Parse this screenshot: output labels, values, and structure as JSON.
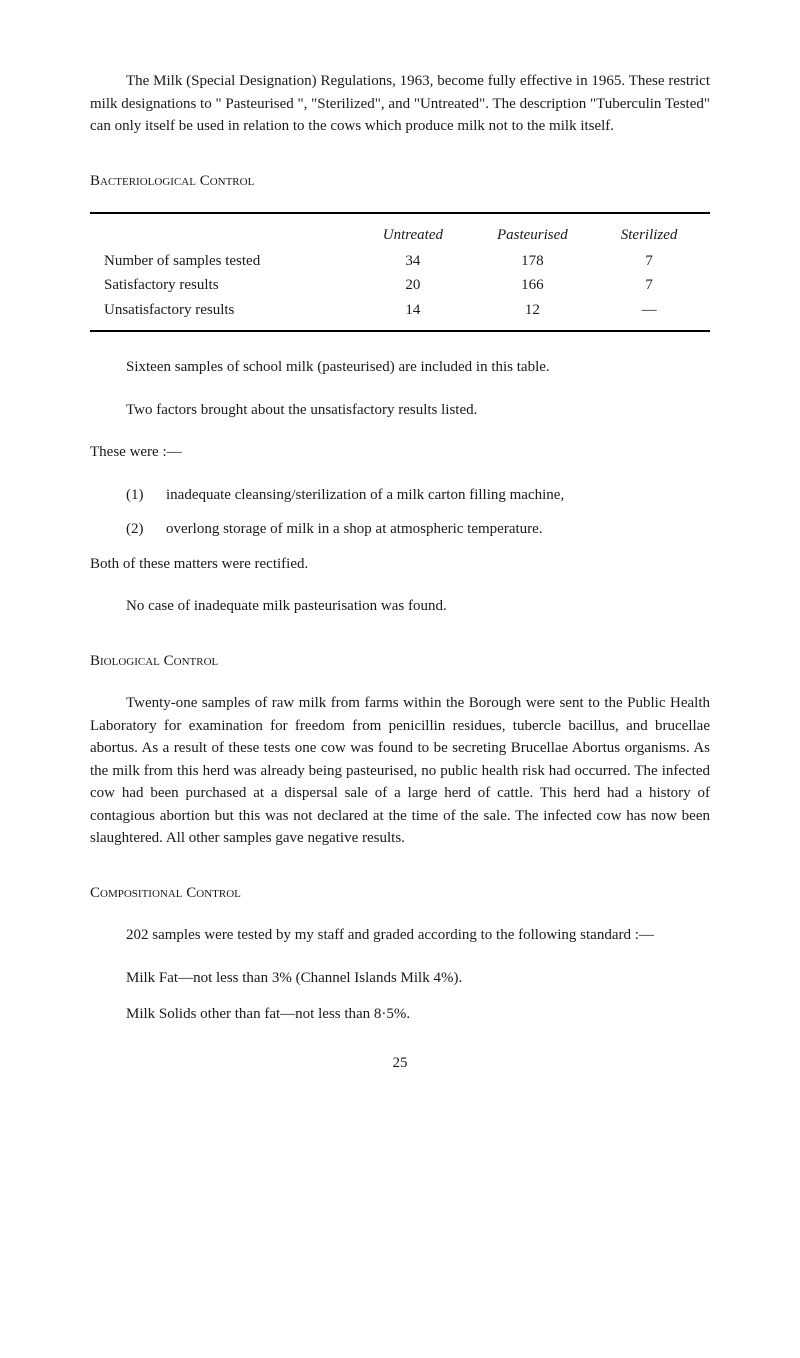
{
  "intro": {
    "p1": "The Milk (Special Designation) Regulations, 1963, become fully effective in 1965. These restrict milk designations to \" Pasteurised \", \"Sterilized\", and \"Untreated\". The description \"Tuberculin Tested\" can only itself be used in relation to the cows which produce milk not to the milk itself."
  },
  "bacteriological": {
    "heading": "Bacteriological Control",
    "table": {
      "headers": [
        "",
        "Untreated",
        "Pasteurised",
        "Sterilized"
      ],
      "rows": [
        [
          "Number of samples tested",
          "34",
          "178",
          "7"
        ],
        [
          "Satisfactory results",
          "20",
          "166",
          "7"
        ],
        [
          "Unsatisfactory results",
          "14",
          "12",
          "—"
        ]
      ]
    },
    "p1": "Sixteen samples of school milk (pasteurised) are included in this table.",
    "p2": "Two factors brought about the unsatisfactory results listed.",
    "p3": "These were :—",
    "list": [
      {
        "num": "(1)",
        "text": "inadequate cleansing/sterilization of a milk carton filling machine,"
      },
      {
        "num": "(2)",
        "text": "overlong storage of milk in a shop at atmospheric temperature."
      }
    ],
    "p4": "Both of these matters were rectified.",
    "p5": "No case of inadequate milk pasteurisation was found."
  },
  "biological": {
    "heading": "Biological Control",
    "p1": "Twenty-one samples of raw milk from farms within the Borough were sent to the Public Health Laboratory for examination for freedom from penicillin residues, tubercle bacillus, and brucellae abortus. As a result of these tests one cow was found to be secreting Brucellae Abortus organisms. As the milk from this herd was already being pasteurised, no public health risk had occurred. The infected cow had been purchased at a dispersal sale of a large herd of cattle. This herd had a history of contagious abortion but this was not declared at the time of the sale. The infected cow has now been slaughtered. All other samples gave negative results."
  },
  "compositional": {
    "heading": "Compositional Control",
    "p1": "202 samples were tested by my staff and graded according to the following standard :—",
    "p2": "Milk Fat—not less than 3% (Channel Islands Milk 4%).",
    "p3": "Milk Solids other than fat—not less than 8·5%."
  },
  "pageNumber": "25"
}
